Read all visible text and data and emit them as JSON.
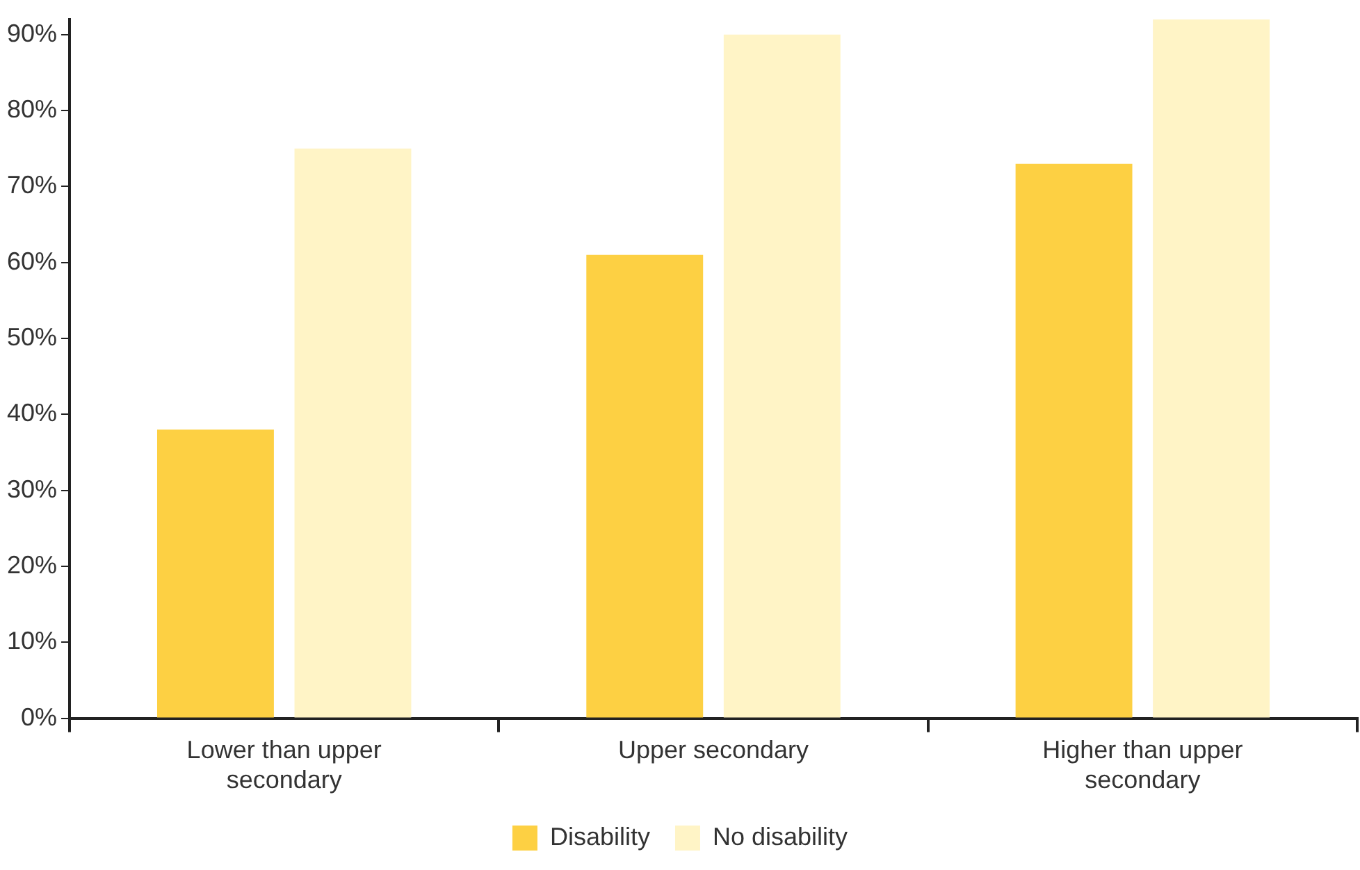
{
  "chart_data": {
    "type": "bar",
    "categories": [
      "Lower than upper secondary",
      "Upper secondary",
      "Higher than upper secondary"
    ],
    "series": [
      {
        "name": "Disability",
        "color": "#fdd043",
        "values": [
          38,
          61,
          73
        ]
      },
      {
        "name": "No disability",
        "color": "#fff4c6",
        "values": [
          75,
          90,
          92
        ]
      }
    ],
    "ylim": [
      0,
      92
    ],
    "yticks": [
      {
        "value": 0,
        "label": "0%"
      },
      {
        "value": 10,
        "label": "10%"
      },
      {
        "value": 20,
        "label": "20%"
      },
      {
        "value": 30,
        "label": "30%"
      },
      {
        "value": 40,
        "label": "40%"
      },
      {
        "value": 50,
        "label": "50%"
      },
      {
        "value": 60,
        "label": "60%"
      },
      {
        "value": 70,
        "label": "70%"
      },
      {
        "value": 80,
        "label": "80%"
      },
      {
        "value": 90,
        "label": "90%"
      }
    ],
    "grid": false,
    "legend": "bottom"
  }
}
